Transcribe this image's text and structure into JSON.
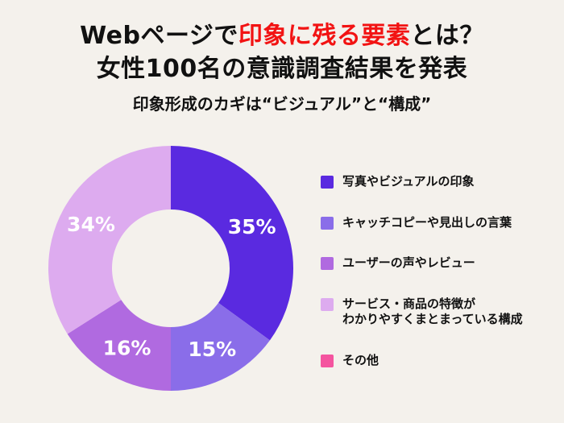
{
  "background_color": "#f4f1ec",
  "title": {
    "line1_pre": "Webページで",
    "line1_highlight": "印象に残る要素",
    "line1_post": "とは？",
    "highlight_color": "#f21313",
    "line2": "女性100名の意識調査結果を発表",
    "subtitle": "印象形成のカギは“ビジュアル”と“構成”"
  },
  "chart_data": {
    "type": "pie",
    "style": "donut",
    "title": "Webページで印象に残る要素（女性100名意識調査）",
    "start_angle": "top",
    "direction": "clockwise",
    "legend_position": "right",
    "value_suffix": "%",
    "categories": [
      "写真やビジュアルの印象",
      "キャッチコピーや見出しの言葉",
      "ユーザーの声やレビュー",
      "サービス・商品の特徴が\nわかりやすくまとまっている構成",
      "その他"
    ],
    "values": [
      35,
      15,
      16,
      34,
      0
    ],
    "colors": [
      "#5a2ae0",
      "#8a6de9",
      "#b06ae0",
      "#ddabef",
      "#f4549f"
    ]
  },
  "legend": {
    "items": [
      {
        "label": "写真やビジュアルの印象",
        "color": "#5a2ae0"
      },
      {
        "label": "キャッチコピーや見出しの言葉",
        "color": "#8a6de9"
      },
      {
        "label": "ユーザーの声やレビュー",
        "color": "#b06ae0"
      },
      {
        "label": "サービス・商品の特徴が\nわかりやすくまとまっている構成",
        "color": "#ddabef"
      },
      {
        "label": "その他",
        "color": "#f4549f"
      }
    ]
  }
}
